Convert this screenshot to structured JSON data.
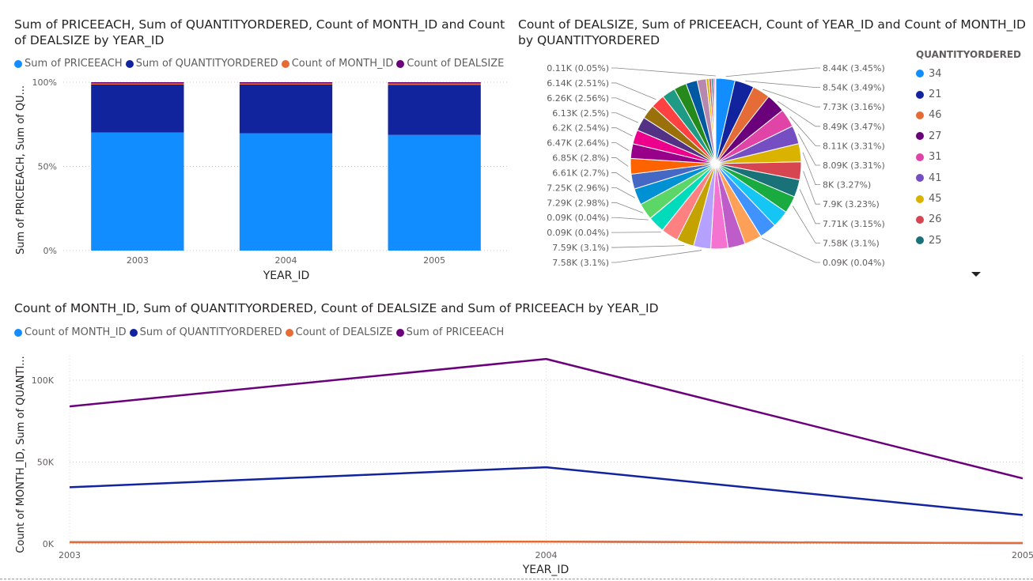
{
  "chart1": {
    "title_line1": "Sum of PRICEEACH, Sum of QUANTITYORDERED, Count of MONTH_ID and Count",
    "title_line2": "of DEALSIZE by YEAR_ID",
    "legend": [
      {
        "label": "Sum of PRICEEACH",
        "color": "#118DFF"
      },
      {
        "label": "Sum of QUANTITYORDERED",
        "color": "#12239E"
      },
      {
        "label": "Count of MONTH_ID",
        "color": "#E66C37"
      },
      {
        "label": "Count of DEALSIZE",
        "color": "#6B007B"
      }
    ],
    "ylabel": "Sum of PRICEEACH, Sum of QU...",
    "xlabel": "YEAR_ID"
  },
  "chart2": {
    "title_line1": "Count of DEALSIZE, Sum of PRICEEACH, Count of YEAR_ID and Count of MONTH_ID",
    "title_line2": "by QUANTITYORDERED",
    "legend_title": "QUANTITYORDERED",
    "legend": [
      {
        "label": "34",
        "color": "#118DFF"
      },
      {
        "label": "21",
        "color": "#12239E"
      },
      {
        "label": "46",
        "color": "#E66C37"
      },
      {
        "label": "27",
        "color": "#6B007B"
      },
      {
        "label": "31",
        "color": "#E044A7"
      },
      {
        "label": "41",
        "color": "#744EC2"
      },
      {
        "label": "45",
        "color": "#D9B300"
      },
      {
        "label": "26",
        "color": "#D64550"
      },
      {
        "label": "25",
        "color": "#197278"
      }
    ]
  },
  "chart3": {
    "title": "Count of MONTH_ID, Sum of QUANTITYORDERED, Count of DEALSIZE and Sum of PRICEEACH by YEAR_ID",
    "legend": [
      {
        "label": "Count of MONTH_ID",
        "color": "#118DFF"
      },
      {
        "label": "Sum of QUANTITYORDERED",
        "color": "#12239E"
      },
      {
        "label": "Count of DEALSIZE",
        "color": "#E66C37"
      },
      {
        "label": "Sum of PRICEEACH",
        "color": "#6B007B"
      }
    ],
    "ylabel": "Count of MONTH_ID, Sum of QUANTI...",
    "xlabel": "YEAR_ID"
  },
  "chart_data": [
    {
      "type": "bar",
      "stacked": "100%",
      "title": "Sum of PRICEEACH, Sum of QUANTITYORDERED, Count of MONTH_ID and Count of DEALSIZE by YEAR_ID",
      "xlabel": "YEAR_ID",
      "ylabel": "Sum of PRICEEACH, Sum of QU...",
      "categories": [
        "2003",
        "2004",
        "2005"
      ],
      "yticks": [
        "0%",
        "50%",
        "100%"
      ],
      "ylim": [
        0,
        100
      ],
      "series": [
        {
          "name": "Sum of PRICEEACH",
          "color": "#118DFF",
          "values": [
            70.2,
            69.7,
            68.7
          ]
        },
        {
          "name": "Sum of QUANTITYORDERED",
          "color": "#12239E",
          "values": [
            28.4,
            28.9,
            29.8
          ]
        },
        {
          "name": "Count of MONTH_ID",
          "color": "#E66C37",
          "values": [
            0.7,
            0.7,
            0.75
          ]
        },
        {
          "name": "Count of DEALSIZE",
          "color": "#6B007B",
          "values": [
            0.7,
            0.7,
            0.75
          ]
        }
      ]
    },
    {
      "type": "pie",
      "title": "Count of DEALSIZE, Sum of PRICEEACH, Count of YEAR_ID and Count of MONTH_ID by QUANTITYORDERED",
      "legend_title": "QUANTITYORDERED",
      "slices": [
        {
          "value": 8.44,
          "label": "8.44K (3.45%)",
          "color": "#118DFF"
        },
        {
          "value": 8.54,
          "label": "8.54K (3.49%)",
          "color": "#12239E"
        },
        {
          "value": 7.73,
          "label": "7.73K (3.16%)",
          "color": "#E66C37"
        },
        {
          "value": 8.49,
          "label": "8.49K (3.47%)",
          "color": "#6B007B"
        },
        {
          "value": 8.11,
          "label": "8.11K (3.31%)",
          "color": "#E044A7"
        },
        {
          "value": 8.09,
          "label": "8.09K (3.31%)",
          "color": "#744EC2"
        },
        {
          "value": 8.0,
          "label": "8K (3.27%)",
          "color": "#D9B300"
        },
        {
          "value": 7.9,
          "label": "7.9K (3.23%)",
          "color": "#D64550"
        },
        {
          "value": 7.71,
          "label": "7.71K (3.15%)",
          "color": "#197278"
        },
        {
          "value": 7.58,
          "label": "7.58K (3.1%)",
          "color": "#1AAB40"
        },
        {
          "value": 7.58,
          "label": "",
          "color": "#15C6F4"
        },
        {
          "value": 7.58,
          "label": "",
          "color": "#4092FF"
        },
        {
          "value": 0.09,
          "label": "0.09K (0.04%)",
          "color": "#FFA058"
        },
        {
          "value": 7.58,
          "label": "",
          "color": "#FFA058"
        },
        {
          "value": 7.58,
          "label": "",
          "color": "#BE5DC9"
        },
        {
          "value": 7.58,
          "label": "",
          "color": "#F472D0"
        },
        {
          "value": 7.58,
          "label": "7.58K (3.1%)",
          "color": "#B5A1FF"
        },
        {
          "value": 7.59,
          "label": "7.59K (3.1%)",
          "color": "#C4A200"
        },
        {
          "value": 7.59,
          "label": "",
          "color": "#FF8080"
        },
        {
          "value": 0.09,
          "label": "0.09K (0.04%)",
          "color": "#00DBBC"
        },
        {
          "value": 7.29,
          "label": "",
          "color": "#00DBBC"
        },
        {
          "value": 0.09,
          "label": "0.09K (0.04%)",
          "color": "#5BD667"
        },
        {
          "value": 7.29,
          "label": "7.29K (2.98%)",
          "color": "#5BD667"
        },
        {
          "value": 7.25,
          "label": "7.25K (2.96%)",
          "color": "#0091D5"
        },
        {
          "value": 6.61,
          "label": "6.61K (2.7%)",
          "color": "#4668C5"
        },
        {
          "value": 6.85,
          "label": "6.85K (2.8%)",
          "color": "#FF6300"
        },
        {
          "value": 6.47,
          "label": "6.47K (2.64%)",
          "color": "#99008A"
        },
        {
          "value": 6.2,
          "label": "6.2K (2.54%)",
          "color": "#EC008C"
        },
        {
          "value": 6.13,
          "label": "6.13K (2.5%)",
          "color": "#533285"
        },
        {
          "value": 6.26,
          "label": "6.26K (2.56%)",
          "color": "#99700A"
        },
        {
          "value": 6.14,
          "label": "6.14K (2.51%)",
          "color": "#FF4141"
        },
        {
          "value": 5.9,
          "label": "",
          "color": "#1F9A85"
        },
        {
          "value": 5.6,
          "label": "",
          "color": "#25891C"
        },
        {
          "value": 5.0,
          "label": "",
          "color": "#0057A2"
        },
        {
          "value": 4.0,
          "label": "",
          "color": "#B887AD"
        },
        {
          "value": 1.2,
          "label": "",
          "color": "#D9B300"
        },
        {
          "value": 1.0,
          "label": "",
          "color": "#D64550"
        },
        {
          "value": 0.8,
          "label": "",
          "color": "#197278"
        },
        {
          "value": 0.6,
          "label": "",
          "color": "#6B007B"
        },
        {
          "value": 0.5,
          "label": "",
          "color": "#E66C37"
        },
        {
          "value": 0.11,
          "label": "0.11K (0.05%)",
          "color": "#118DFF"
        }
      ]
    },
    {
      "type": "line",
      "title": "Count of MONTH_ID, Sum of QUANTITYORDERED, Count of DEALSIZE and Sum of PRICEEACH by YEAR_ID",
      "xlabel": "YEAR_ID",
      "ylabel": "Count of MONTH_ID, Sum of QUANTI...",
      "x": [
        "2003",
        "2004",
        "2005"
      ],
      "yticks": [
        "0K",
        "50K",
        "100K"
      ],
      "ylim": [
        0,
        115000
      ],
      "series": [
        {
          "name": "Count of MONTH_ID",
          "color": "#118DFF",
          "values": [
            1000,
            1345,
            478
          ]
        },
        {
          "name": "Sum of QUANTITYORDERED",
          "color": "#12239E",
          "values": [
            34612,
            46824,
            17631
          ]
        },
        {
          "name": "Count of DEALSIZE",
          "color": "#E66C37",
          "values": [
            1000,
            1345,
            478
          ]
        },
        {
          "name": "Sum of PRICEEACH",
          "color": "#6B007B",
          "values": [
            84000,
            113000,
            40000
          ]
        }
      ]
    }
  ]
}
